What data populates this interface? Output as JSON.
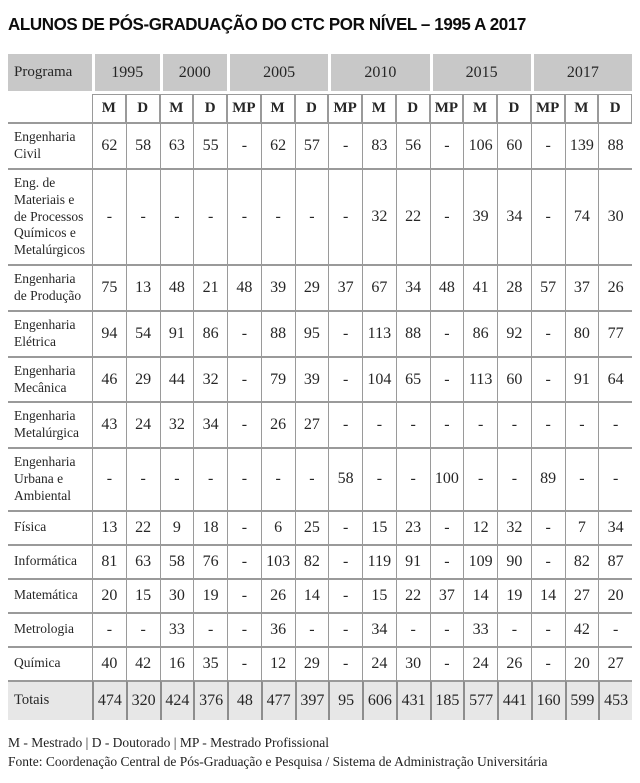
{
  "title": "ALUNOS DE PÓS-GRADUAÇÃO DO CTC POR NÍVEL – 1995 A 2017",
  "colors": {
    "header_bg": "#c8c8c8",
    "totals_bg": "#e7e7e7",
    "line": "#9a9a9a"
  },
  "table": {
    "corner_header": "Programa",
    "year_groups": [
      {
        "label": "1995",
        "sub": [
          "M",
          "D"
        ]
      },
      {
        "label": "2000",
        "sub": [
          "M",
          "D"
        ]
      },
      {
        "label": "2005",
        "sub": [
          "MP",
          "M",
          "D"
        ]
      },
      {
        "label": "2010",
        "sub": [
          "MP",
          "M",
          "D"
        ]
      },
      {
        "label": "2015",
        "sub": [
          "MP",
          "M",
          "D"
        ]
      },
      {
        "label": "2017",
        "sub": [
          "MP",
          "M",
          "D"
        ]
      }
    ],
    "rows": [
      {
        "program": "Engenharia Civil",
        "values": [
          "62",
          "58",
          "63",
          "55",
          "-",
          "62",
          "57",
          "-",
          "83",
          "56",
          "-",
          "106",
          "60",
          "-",
          "139",
          "88"
        ]
      },
      {
        "program": "Eng. de Materiais e de Processos Químicos e Metalúr­gicos",
        "values": [
          "-",
          "-",
          "-",
          "-",
          "-",
          "-",
          "-",
          "-",
          "32",
          "22",
          "-",
          "39",
          "34",
          "-",
          "74",
          "30"
        ]
      },
      {
        "program": "Engenharia de Produção",
        "values": [
          "75",
          "13",
          "48",
          "21",
          "48",
          "39",
          "29",
          "37",
          "67",
          "34",
          "48",
          "41",
          "28",
          "57",
          "37",
          "26"
        ]
      },
      {
        "program": "Engenharia Elétrica",
        "values": [
          "94",
          "54",
          "91",
          "86",
          "-",
          "88",
          "95",
          "-",
          "113",
          "88",
          "-",
          "86",
          "92",
          "-",
          "80",
          "77"
        ]
      },
      {
        "program": "Engenharia Mecânica",
        "values": [
          "46",
          "29",
          "44",
          "32",
          "-",
          "79",
          "39",
          "-",
          "104",
          "65",
          "-",
          "113",
          "60",
          "-",
          "91",
          "64"
        ]
      },
      {
        "program": "Engenharia Metalúrgica",
        "values": [
          "43",
          "24",
          "32",
          "34",
          "-",
          "26",
          "27",
          "-",
          "-",
          "-",
          "-",
          "-",
          "-",
          "-",
          "-",
          "-"
        ]
      },
      {
        "program": "Engenharia Urbana e Ambiental",
        "values": [
          "-",
          "-",
          "-",
          "-",
          "-",
          "-",
          "-",
          "58",
          "-",
          "-",
          "100",
          "-",
          "-",
          "89",
          "-",
          "-"
        ]
      },
      {
        "program": "Física",
        "values": [
          "13",
          "22",
          "9",
          "18",
          "-",
          "6",
          "25",
          "-",
          "15",
          "23",
          "-",
          "12",
          "32",
          "-",
          "7",
          "34"
        ]
      },
      {
        "program": "Informática",
        "values": [
          "81",
          "63",
          "58",
          "76",
          "-",
          "103",
          "82",
          "-",
          "119",
          "91",
          "-",
          "109",
          "90",
          "-",
          "82",
          "87"
        ]
      },
      {
        "program": "Matemática",
        "values": [
          "20",
          "15",
          "30",
          "19",
          "-",
          "26",
          "14",
          "-",
          "15",
          "22",
          "37",
          "14",
          "19",
          "14",
          "27",
          "20"
        ]
      },
      {
        "program": "Metrologia",
        "values": [
          "-",
          "-",
          "33",
          "-",
          "-",
          "36",
          "-",
          "-",
          "34",
          "-",
          "-",
          "33",
          "-",
          "-",
          "42",
          "-"
        ]
      },
      {
        "program": "Química",
        "values": [
          "40",
          "42",
          "16",
          "35",
          "-",
          "12",
          "29",
          "-",
          "24",
          "30",
          "-",
          "24",
          "26",
          "-",
          "20",
          "27"
        ]
      }
    ],
    "totals": {
      "label": "Totais",
      "values": [
        "474",
        "320",
        "424",
        "376",
        "48",
        "477",
        "397",
        "95",
        "606",
        "431",
        "185",
        "577",
        "441",
        "160",
        "599",
        "453"
      ]
    }
  },
  "footer": {
    "legend": "M - Mestrado | D - Doutorado | MP - Mestrado Profissional",
    "source": "Fonte: Coordenação Central de Pós-Graduação e Pesquisa / Sistema de Administração Universitária"
  }
}
